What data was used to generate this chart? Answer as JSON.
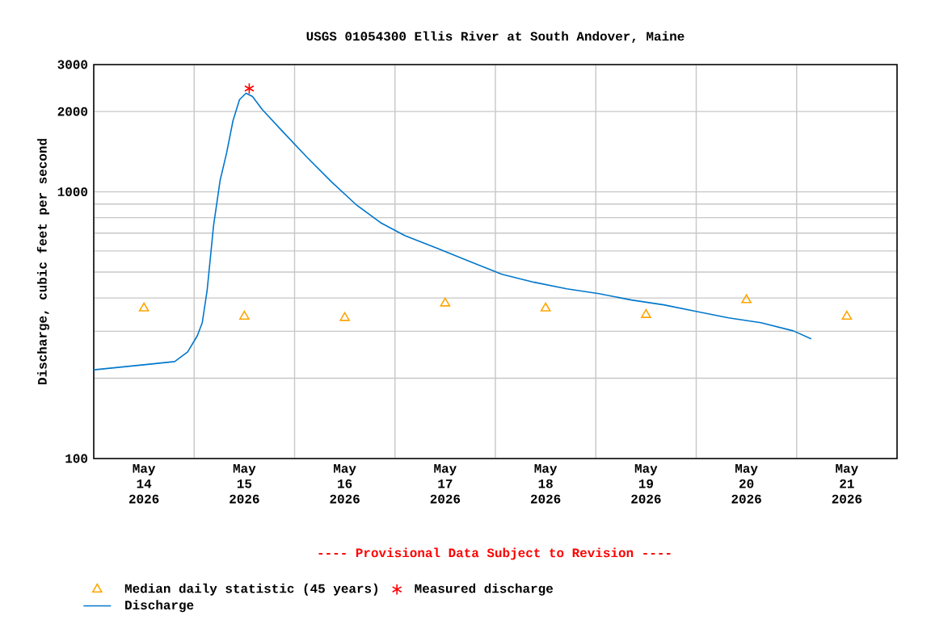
{
  "chart_data": {
    "type": "line",
    "title": "USGS 01054300 Ellis River at South Andover, Maine",
    "ylabel": "Discharge, cubic feet per second",
    "annotations": [
      "---- Provisional Data Subject to Revision ----"
    ],
    "log": "y",
    "grid": true,
    "legend": "bottom",
    "xlim": [
      "2026-05-14T00:00",
      "2026-05-22T00:00"
    ],
    "xticks": [
      {
        "value": "2026-05-14T12:00",
        "label": "May 14 2026"
      },
      {
        "value": "2026-05-15T00:00",
        "label": null
      },
      {
        "value": "2026-05-15T12:00",
        "label": "May 15 2026"
      },
      {
        "value": "2026-05-16T00:00",
        "label": null
      },
      {
        "value": "2026-05-16T12:00",
        "label": "May 16 2026"
      },
      {
        "value": "2026-05-17T00:00",
        "label": null
      },
      {
        "value": "2026-05-17T12:00",
        "label": "May 17 2026"
      },
      {
        "value": "2026-05-18T00:00",
        "label": null
      },
      {
        "value": "2026-05-18T12:00",
        "label": "May 18 2026"
      },
      {
        "value": "2026-05-19T00:00",
        "label": null
      },
      {
        "value": "2026-05-19T12:00",
        "label": "May 19 2026"
      },
      {
        "value": "2026-05-20T00:00",
        "label": null
      },
      {
        "value": "2026-05-20T12:00",
        "label": "May 20 2026"
      },
      {
        "value": "2026-05-21T00:00",
        "label": null
      },
      {
        "value": "2026-05-21T12:00",
        "label": "May 21 2026"
      }
    ],
    "ylim": [
      100,
      3000
    ],
    "yticks": [
      100,
      {
        "value": 200,
        "label": null
      },
      {
        "value": 300,
        "label": null
      },
      {
        "value": 400,
        "label": null
      },
      {
        "value": 500,
        "label": null
      },
      {
        "value": 600,
        "label": null
      },
      {
        "value": 700,
        "label": null
      },
      {
        "value": 800,
        "label": null
      },
      {
        "value": 900,
        "label": null
      },
      1000,
      2000,
      3000
    ],
    "series": [
      {
        "name": "Median daily statistic (45 years)",
        "type": "scatter",
        "marker": "triangle",
        "color": "#ffa500",
        "x": [
          "2026-05-14T12:00",
          "2026-05-15T12:00",
          "2026-05-16T12:00",
          "2026-05-17T12:00",
          "2026-05-18T12:00",
          "2026-05-19T12:00",
          "2026-05-20T12:00",
          "2026-05-21T12:00"
        ],
        "values": [
          366,
          341,
          337,
          382,
          366,
          346,
          393,
          341
        ]
      },
      {
        "name": "Measured discharge",
        "type": "scatter",
        "marker": "cross",
        "color": "#ff0000",
        "x": [
          "2026-05-15T13:10"
        ],
        "values": [
          2440
        ]
      },
      {
        "name": "Discharge",
        "marker": "none",
        "color": "#0077cc",
        "x": [
          "2026-05-14T00:00",
          "2026-05-14T12:24",
          "2026-05-14T19:21",
          "2026-05-14T22:27",
          "2026-05-15T00:46",
          "2026-05-15T01:56",
          "2026-05-15T03:06",
          "2026-05-15T04:38",
          "2026-05-15T06:12",
          "2026-05-15T07:45",
          "2026-05-15T09:17",
          "2026-05-15T10:50",
          "2026-05-15T12:23",
          "2026-05-15T13:56",
          "2026-05-15T16:15",
          "2026-05-15T21:17",
          "2026-05-16T03:06",
          "2026-05-16T08:54",
          "2026-05-16T14:43",
          "2026-05-16T20:31",
          "2026-05-17T02:19",
          "2026-05-17T10:04",
          "2026-05-17T17:48",
          "2026-05-18T01:33",
          "2026-05-18T09:17",
          "2026-05-18T17:02",
          "2026-05-19T00:46",
          "2026-05-19T08:31",
          "2026-05-19T16:15",
          "2026-05-20T00:00",
          "2026-05-20T07:45",
          "2026-05-20T15:29",
          "2026-05-20T23:14",
          "2026-05-21T03:29"
        ],
        "values": [
          215,
          225,
          231,
          251,
          289,
          323,
          427,
          746,
          1103,
          1397,
          1848,
          2215,
          2343,
          2278,
          2037,
          1675,
          1341,
          1087,
          895,
          767,
          686,
          614,
          549,
          491,
          458,
          433,
          415,
          393,
          377,
          356,
          337,
          323,
          301,
          281
        ]
      }
    ]
  }
}
